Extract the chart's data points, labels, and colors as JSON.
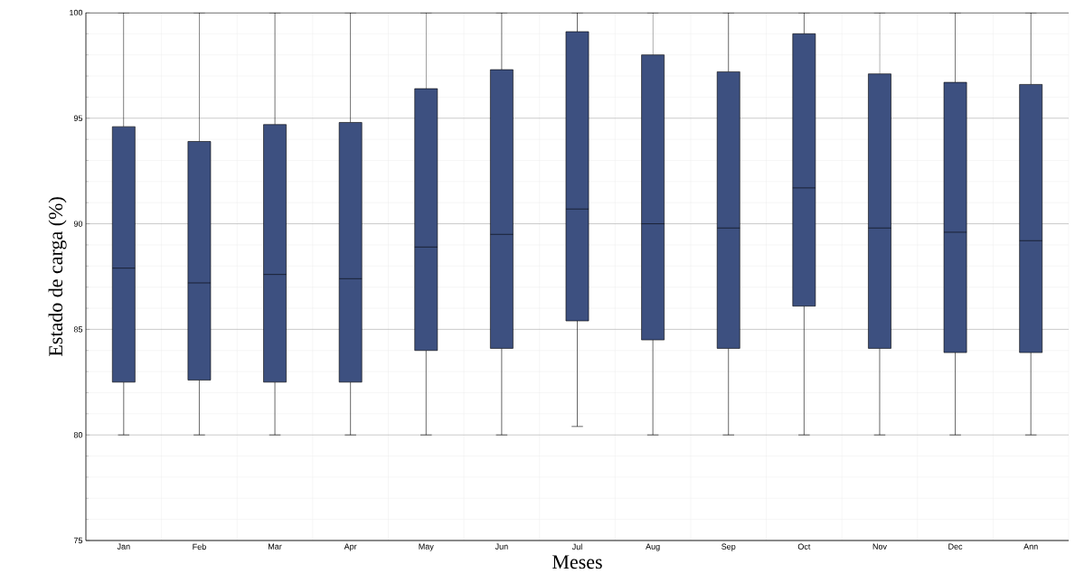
{
  "chart_data": {
    "type": "box",
    "xlabel": "Meses",
    "ylabel": "Estado de carga (%)",
    "categories": [
      "Jan",
      "Feb",
      "Mar",
      "Apr",
      "May",
      "Jun",
      "Jul",
      "Aug",
      "Sep",
      "Oct",
      "Nov",
      "Dec",
      "Ann"
    ],
    "color": "#3d5080",
    "ylim": [
      75,
      100
    ],
    "yticks": [
      75,
      80,
      85,
      90,
      95,
      100
    ],
    "grid": true,
    "boxes": [
      {
        "low": 80,
        "q1": 82.5,
        "median": 87.9,
        "q3": 94.6,
        "high": 100
      },
      {
        "low": 80,
        "q1": 82.6,
        "median": 87.2,
        "q3": 93.9,
        "high": 100
      },
      {
        "low": 80,
        "q1": 82.5,
        "median": 87.6,
        "q3": 94.7,
        "high": 100
      },
      {
        "low": 80,
        "q1": 82.5,
        "median": 87.4,
        "q3": 94.8,
        "high": 100
      },
      {
        "low": 80,
        "q1": 84.0,
        "median": 88.9,
        "q3": 96.4,
        "high": 100
      },
      {
        "low": 80,
        "q1": 84.1,
        "median": 89.5,
        "q3": 97.3,
        "high": 100
      },
      {
        "low": 80.4,
        "q1": 85.4,
        "median": 90.7,
        "q3": 99.1,
        "high": 100
      },
      {
        "low": 80,
        "q1": 84.5,
        "median": 90.0,
        "q3": 98.0,
        "high": 100
      },
      {
        "low": 80,
        "q1": 84.1,
        "median": 89.8,
        "q3": 97.2,
        "high": 100
      },
      {
        "low": 80,
        "q1": 86.1,
        "median": 91.7,
        "q3": 99.0,
        "high": 100
      },
      {
        "low": 80,
        "q1": 84.1,
        "median": 89.8,
        "q3": 97.1,
        "high": 100
      },
      {
        "low": 80,
        "q1": 83.9,
        "median": 89.6,
        "q3": 96.7,
        "high": 100
      },
      {
        "low": 80,
        "q1": 83.9,
        "median": 89.2,
        "q3": 96.6,
        "high": 100
      }
    ]
  }
}
